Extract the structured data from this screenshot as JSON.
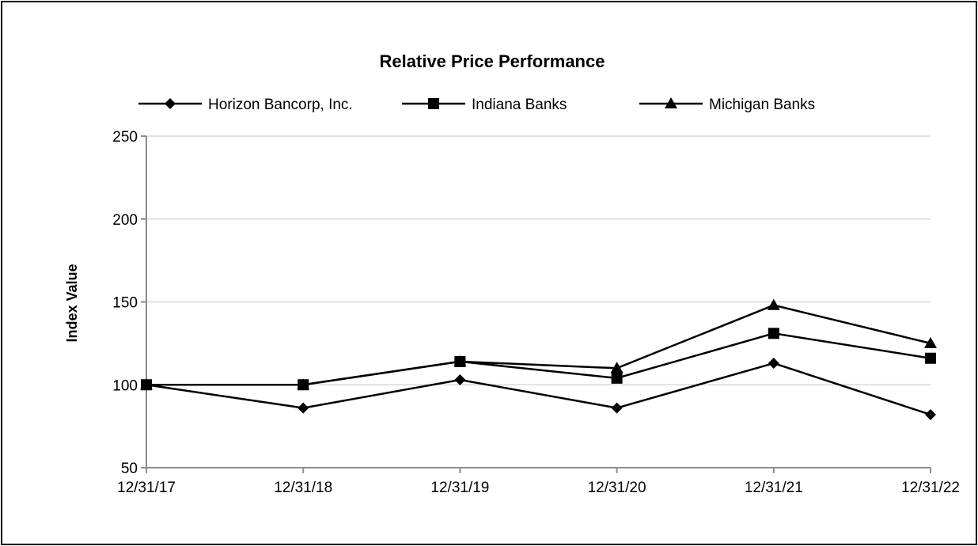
{
  "chart_data": {
    "type": "line",
    "title": "Relative Price Performance",
    "xlabel": "",
    "ylabel": "Index Value",
    "categories": [
      "12/31/17",
      "12/31/18",
      "12/31/19",
      "12/31/20",
      "12/31/21",
      "12/31/22"
    ],
    "ylim": [
      50,
      250
    ],
    "yticks": [
      50,
      100,
      150,
      200,
      250
    ],
    "grid": true,
    "legend_position": "top",
    "series": [
      {
        "name": "Horizon Bancorp, Inc.",
        "marker": "diamond",
        "color": "#000000",
        "values": [
          100,
          86,
          103,
          86,
          113,
          82
        ]
      },
      {
        "name": "Indiana Banks",
        "marker": "square",
        "color": "#000000",
        "values": [
          100,
          100,
          114,
          104,
          131,
          116
        ]
      },
      {
        "name": "Michigan Banks",
        "marker": "triangle",
        "color": "#000000",
        "values": [
          100,
          100,
          114,
          110,
          148,
          125
        ]
      }
    ]
  }
}
